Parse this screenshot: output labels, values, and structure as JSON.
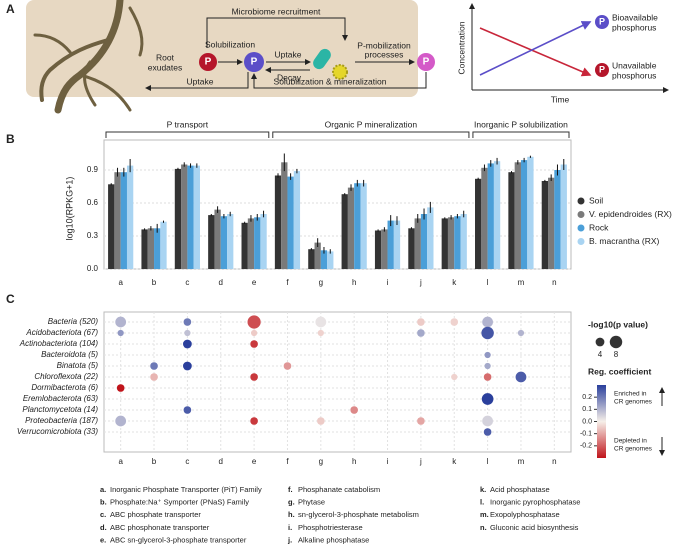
{
  "panel_labels": [
    "A",
    "B",
    "C"
  ],
  "diagram": {
    "microbiome_recruitment": "Microbiome recruitment",
    "root_exudates": [
      "Root",
      "exudates"
    ],
    "solubilization": "Solubilization",
    "uptake_right": "Uptake",
    "decay": "Decay",
    "p_mobilization": [
      "P-mobilization",
      "processes"
    ],
    "uptake_left": "Uptake",
    "solubilization_mineralization": "Solubilization & mineralization",
    "p_icons": [
      "P",
      "P",
      "P",
      "P",
      "P"
    ]
  },
  "concept_plot": {
    "y_label": "Concentration",
    "x_label": "Time",
    "bioavailable": [
      "Bioavailable",
      "phosphorus"
    ],
    "unavailable": [
      "Unavailable",
      "phosphorus"
    ]
  },
  "chart_data": [
    {
      "type": "bar",
      "y_label": "log10(RPKG+1)",
      "categories": [
        "a",
        "b",
        "c",
        "d",
        "e",
        "f",
        "g",
        "h",
        "i",
        "j",
        "k",
        "l",
        "m",
        "n"
      ],
      "groups": [
        {
          "name": "P transport",
          "from": "a",
          "to": "e"
        },
        {
          "name": "Organic P mineralization",
          "from": "f",
          "to": "k"
        },
        {
          "name": "Inorganic P solubilization",
          "from": "l",
          "to": "n"
        }
      ],
      "ylim": [
        0,
        1.1
      ],
      "yticks": [
        {
          "value": 0,
          "label": "0.0"
        },
        0.3,
        0.6,
        0.9
      ],
      "grid": true,
      "legend": "right",
      "series": [
        {
          "name": "Soil",
          "color": "#333333",
          "values": [
            0.77,
            0.36,
            0.91,
            0.49,
            0.42,
            0.85,
            0.18,
            0.68,
            0.35,
            0.37,
            0.46,
            0.82,
            0.88,
            0.8
          ],
          "errors": [
            0.01,
            0.01,
            0.01,
            0.01,
            0.01,
            0.02,
            0.01,
            0.01,
            0.01,
            0.01,
            0.01,
            0.01,
            0.01,
            0.01
          ]
        },
        {
          "name": "V. epidendroides (RX)",
          "color": "#7a7a7a",
          "values": [
            0.88,
            0.37,
            0.95,
            0.54,
            0.46,
            0.97,
            0.24,
            0.74,
            0.36,
            0.46,
            0.47,
            0.92,
            0.97,
            0.83
          ],
          "errors": [
            0.04,
            0.02,
            0.02,
            0.03,
            0.03,
            0.08,
            0.04,
            0.03,
            0.02,
            0.04,
            0.02,
            0.03,
            0.02,
            0.03
          ]
        },
        {
          "name": "Rock",
          "color": "#4b9fd8",
          "values": [
            0.88,
            0.37,
            0.94,
            0.48,
            0.47,
            0.84,
            0.17,
            0.78,
            0.44,
            0.5,
            0.48,
            0.96,
            0.99,
            0.9
          ],
          "errors": [
            0.04,
            0.04,
            0.02,
            0.02,
            0.03,
            0.03,
            0.03,
            0.03,
            0.05,
            0.05,
            0.02,
            0.03,
            0.02,
            0.05
          ]
        },
        {
          "name": "B. macrantha (RX)",
          "color": "#a9d4f2",
          "values": [
            0.94,
            0.43,
            0.94,
            0.5,
            0.5,
            0.89,
            0.16,
            0.78,
            0.44,
            0.56,
            0.5,
            0.98,
            1.02,
            0.95
          ],
          "errors": [
            0.06,
            0.01,
            0.02,
            0.02,
            0.03,
            0.02,
            0.02,
            0.03,
            0.04,
            0.05,
            0.03,
            0.03,
            0.01,
            0.05
          ]
        }
      ]
    },
    {
      "type": "bubble",
      "categories": [
        "a",
        "b",
        "c",
        "d",
        "e",
        "f",
        "g",
        "h",
        "i",
        "j",
        "k",
        "l",
        "m",
        "n"
      ],
      "rows": [
        "Bacteria (520)",
        "Acidobacteriota (67)",
        "Actinobacteriota (104)",
        "Bacteroidota (5)",
        "Binatota (5)",
        "Chloroflexota (22)",
        "Dormibacterota (6)",
        "Eremlobacterota (63)",
        "Planctomycetota (14)",
        "Proteobacteria (187)",
        "Verrucomicrobiota (33)"
      ],
      "coefficients": [
        [
          0.1,
          null,
          0.2,
          null,
          -0.22,
          null,
          0.02,
          null,
          null,
          -0.05,
          -0.04,
          0.1,
          null,
          null
        ],
        [
          0.15,
          null,
          0.08,
          null,
          -0.05,
          null,
          -0.04,
          null,
          null,
          0.12,
          null,
          0.26,
          0.1,
          null
        ],
        [
          null,
          null,
          0.3,
          null,
          -0.25,
          null,
          null,
          null,
          null,
          null,
          null,
          null,
          null,
          null
        ],
        [
          null,
          null,
          null,
          null,
          null,
          null,
          null,
          null,
          null,
          null,
          null,
          0.15,
          null,
          null
        ],
        [
          null,
          0.2,
          0.3,
          null,
          null,
          -0.12,
          null,
          null,
          null,
          null,
          null,
          0.12,
          null,
          null
        ],
        [
          null,
          -0.08,
          null,
          null,
          -0.25,
          null,
          null,
          null,
          null,
          null,
          -0.04,
          -0.18,
          0.25,
          null
        ],
        [
          -0.3,
          null,
          null,
          null,
          null,
          null,
          null,
          null,
          null,
          null,
          null,
          null,
          null,
          null
        ],
        [
          null,
          null,
          null,
          null,
          null,
          null,
          null,
          null,
          null,
          null,
          null,
          0.3,
          null,
          null
        ],
        [
          null,
          null,
          0.25,
          null,
          null,
          null,
          null,
          -0.14,
          null,
          null,
          null,
          null,
          null,
          null
        ],
        [
          0.1,
          null,
          null,
          null,
          -0.25,
          null,
          -0.05,
          null,
          null,
          -0.1,
          null,
          0.05,
          null,
          null
        ],
        [
          null,
          null,
          null,
          null,
          null,
          null,
          null,
          null,
          null,
          null,
          null,
          0.25,
          null,
          null
        ]
      ],
      "sizes": [
        [
          6,
          null,
          3,
          null,
          9,
          null,
          6,
          null,
          null,
          3,
          3,
          6,
          null,
          null
        ],
        [
          2,
          null,
          2,
          null,
          2,
          null,
          2,
          null,
          null,
          3,
          null,
          8,
          2,
          null
        ],
        [
          null,
          null,
          4,
          null,
          3,
          null,
          null,
          null,
          null,
          null,
          null,
          null,
          null,
          null
        ],
        [
          null,
          null,
          null,
          null,
          null,
          null,
          null,
          null,
          null,
          null,
          null,
          2,
          null,
          null
        ],
        [
          null,
          3,
          4,
          null,
          null,
          3,
          null,
          null,
          null,
          null,
          null,
          2,
          null,
          null
        ],
        [
          null,
          3,
          null,
          null,
          3,
          null,
          null,
          null,
          null,
          null,
          2,
          3,
          6,
          null
        ],
        [
          3,
          null,
          null,
          null,
          null,
          null,
          null,
          null,
          null,
          null,
          null,
          null,
          null,
          null
        ],
        [
          null,
          null,
          null,
          null,
          null,
          null,
          null,
          null,
          null,
          null,
          null,
          7,
          null,
          null
        ],
        [
          null,
          null,
          3,
          null,
          null,
          null,
          null,
          3,
          null,
          null,
          null,
          null,
          null,
          null
        ],
        [
          6,
          null,
          null,
          null,
          3,
          null,
          3,
          null,
          null,
          3,
          null,
          6,
          null,
          null
        ],
        [
          null,
          null,
          null,
          null,
          null,
          null,
          null,
          null,
          null,
          null,
          null,
          3,
          null,
          null
        ]
      ],
      "grid": true,
      "size_legend": {
        "title": "-log10(p value)",
        "values": [
          4,
          8
        ]
      },
      "colorbar": {
        "title": "Reg. coefficient",
        "lim": [
          -0.3,
          0.3
        ],
        "ticks": [
          0.2,
          0.1,
          {
            "value": 0,
            "label": "0.0"
          },
          -0.1,
          -0.2
        ],
        "colors": {
          "low": "#c0141b",
          "mid": "#f6efe9",
          "high": "#2a3f9c"
        },
        "upper_note": [
          "Enriched in",
          "CR genomes"
        ],
        "lower_note": [
          "Depleted in",
          "CR genomes"
        ]
      },
      "descriptions": [
        {
          "key": "a.",
          "text": "Inorganic Phosphate Transporter (PiT) Family"
        },
        {
          "key": "b.",
          "text": "Phosphate:Na⁺ Symporter (PNaS) Family"
        },
        {
          "key": "c.",
          "text": "ABC phosphate transporter"
        },
        {
          "key": "d.",
          "text": "ABC phosphonate transporter"
        },
        {
          "key": "e.",
          "text": "ABC sn-glycerol-3-phosphate transporter"
        },
        {
          "key": "f.",
          "text": "Phosphanate catabolism"
        },
        {
          "key": "g.",
          "text": "Phytase"
        },
        {
          "key": "h.",
          "text": "sn-glycerol-3-phosphate metabolism"
        },
        {
          "key": "i.",
          "text": "Phosphotriesterase"
        },
        {
          "key": "j.",
          "text": "Alkaline phosphatase"
        },
        {
          "key": "k.",
          "text": "Acid phosphatase"
        },
        {
          "key": "l.",
          "text": "Inorganic pyrophosphatase"
        },
        {
          "key": "m.",
          "text": "Exopolyphosphatase"
        },
        {
          "key": "n.",
          "text": "Gluconic acid biosynthesis"
        }
      ]
    }
  ]
}
